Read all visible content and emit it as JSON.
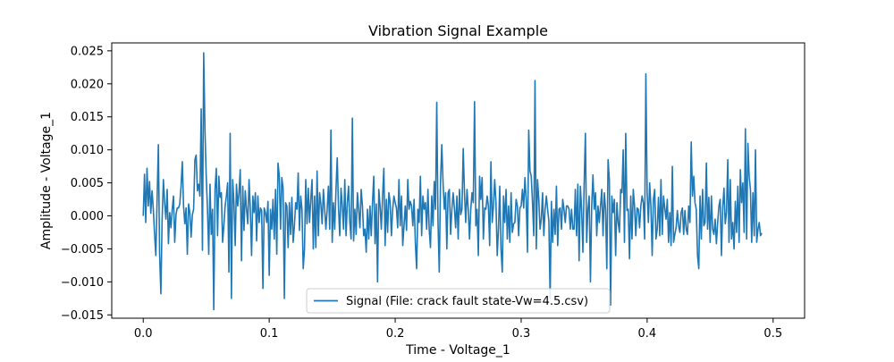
{
  "chart_data": {
    "type": "line",
    "title": "Vibration Signal Example",
    "xlabel": "Time - Voltage_1",
    "ylabel": "Amplitude - Voltage_1",
    "xlim": [
      -0.025,
      0.525
    ],
    "ylim": [
      -0.0155,
      0.0262
    ],
    "xticks": [
      0.0,
      0.1,
      0.2,
      0.3,
      0.4,
      0.5
    ],
    "xtick_labels": [
      "0.0",
      "0.1",
      "0.2",
      "0.3",
      "0.4",
      "0.5"
    ],
    "yticks": [
      -0.015,
      -0.01,
      -0.005,
      0.0,
      0.005,
      0.01,
      0.015,
      0.02,
      0.025
    ],
    "ytick_labels": [
      "−0.015",
      "−0.010",
      "−0.005",
      "0.000",
      "0.005",
      "0.010",
      "0.015",
      "0.020",
      "0.025"
    ],
    "grid": false,
    "legend_position": "lower center",
    "series": [
      {
        "name": "Signal (File: crack fault state-Vw=4.5.csv)",
        "color": "#1f77b4",
        "x_start": 0.0,
        "x_step": 0.001,
        "values": [
          0.0,
          0.0063,
          -0.001,
          0.0072,
          0.0015,
          0.0052,
          0.0004,
          0.0038,
          0.001,
          -0.0028,
          -0.006,
          0.0025,
          0.0108,
          -0.0058,
          -0.0118,
          -0.0005,
          0.0055,
          0.002,
          -0.0005,
          0.004,
          -0.0042,
          0.0005,
          -0.0018,
          0.001,
          0.003,
          -0.004,
          0.0002,
          0.0012,
          0.0012,
          0.0018,
          0.0044,
          0.0082,
          0.0015,
          -0.0012,
          0.0012,
          -0.0058,
          0.0018,
          0.0005,
          -0.0032,
          0.0002,
          0.001,
          0.0085,
          0.0092,
          0.0038,
          0.0048,
          0.003,
          0.0162,
          -0.0052,
          0.0247,
          0.013,
          0.006,
          0.001,
          -0.0058,
          0.0048,
          -0.0028,
          0.001,
          -0.0142,
          0.004,
          0.0072,
          -0.003,
          0.006,
          0.0028,
          0.0035,
          -0.004,
          -0.0015,
          0.0015,
          0.003,
          0.005,
          -0.0085,
          0.0125,
          -0.0125,
          0.0055,
          0.002,
          -0.0045,
          0.0048,
          0.0015,
          0.0035,
          0.007,
          -0.0068,
          0.0045,
          -0.0022,
          0.0038,
          0.001,
          -0.0012,
          0.0055,
          0.001,
          -0.006,
          0.003,
          0.0005,
          0.0035,
          -0.0038,
          0.003,
          -0.001,
          0.0012,
          0.0008,
          -0.011,
          0.0012,
          0.0005,
          -0.001,
          0.0022,
          -0.009,
          0.001,
          -0.002,
          0.0025,
          -0.0035,
          0.004,
          -0.0058,
          0.008,
          0.006,
          -0.002,
          0.0058,
          0.0042,
          -0.0125,
          0.002,
          0.0015,
          -0.0048,
          0.002,
          -0.0028,
          0.0028,
          -0.004,
          -0.0015,
          0.002,
          0.001,
          0.0065,
          -0.0022,
          0.003,
          0.001,
          -0.008,
          -0.005,
          0.0055,
          -0.0012,
          0.0042,
          -0.001,
          0.0025,
          0.0055,
          -0.005,
          0.003,
          -0.0048,
          0.0068,
          -0.003,
          0.0035,
          0.0018,
          -0.0012,
          0.004,
          0.001,
          -0.002,
          0.001,
          0.0045,
          -0.002,
          0.013,
          -0.004,
          0.002,
          -0.002,
          0.004,
          0.0088,
          0.0012,
          -0.003,
          0.0042,
          0.0015,
          -0.002,
          0.0055,
          -0.003,
          0.002,
          0.0045,
          -0.001,
          -0.0035,
          0.0148,
          -0.0038,
          0.001,
          -0.0028,
          0.0035,
          0.001,
          -0.0018,
          0.004,
          0.0015,
          -0.003,
          -0.002,
          -0.0055,
          0.001,
          -0.0035,
          0.0015,
          -0.003,
          0.002,
          0.006,
          -0.0042,
          0.0018,
          -0.01,
          0.004,
          0.0015,
          -0.002,
          0.003,
          0.0072,
          -0.0045,
          0.0025,
          -0.0025,
          0.0035,
          0.002,
          -0.003,
          0.001,
          0.003,
          0.002,
          0.0012,
          -0.0018,
          0.0055,
          -0.0015,
          0.003,
          -0.0045,
          -0.0015,
          0.0015,
          -0.0022,
          0.0055,
          0.001,
          0.0022,
          0.0015,
          -0.0015,
          0.0025,
          -0.004,
          -0.008,
          0.001,
          -0.001,
          0.006,
          -0.003,
          0.003,
          0.001,
          0.002,
          -0.002,
          0.004,
          -0.002,
          -0.0048,
          0.003,
          -0.0015,
          0.0052,
          0.001,
          0.0172,
          -0.001,
          -0.0085,
          0.0052,
          0.0108,
          0.005,
          0.001,
          0.0035,
          -0.005,
          0.0035,
          0.004,
          -0.0028,
          0.001,
          0.0035,
          0.0012,
          -0.0018,
          0.003,
          -0.0035,
          0.004,
          0.0002,
          0.001,
          0.0102,
          0.0035,
          -0.001,
          0.004,
          0.001,
          -0.0035,
          0.001,
          0.0035,
          0.002,
          0.0173,
          -0.0015,
          0.001,
          -0.006,
          0.006,
          0.0025,
          0.0058,
          -0.0035,
          0.0012,
          0.001,
          0.003,
          0.0015,
          -0.0045,
          0.0082,
          -0.001,
          0.0015,
          0.0055,
          0.002,
          -0.006,
          -0.002,
          0.0045,
          -0.005,
          -0.0085,
          0.003,
          -0.001,
          0.004,
          -0.0035,
          0.0015,
          -0.004,
          0.0035,
          -0.0025,
          -0.0012,
          -0.001,
          0.0025,
          0.0015,
          -0.003,
          0.0012,
          0.0015,
          0.004,
          0.0012,
          0.0058,
          0.0025,
          -0.0055,
          0.013,
          0.0068,
          0.006,
          0.002,
          -0.003,
          0.0205,
          -0.005,
          0.0055,
          0.0025,
          -0.002,
          -0.0005,
          0.0035,
          -0.003,
          0.001,
          0.003,
          0.001,
          -0.0008,
          -0.0125,
          0.0022,
          -0.004,
          0.001,
          -0.0028,
          0.0045,
          -0.0045,
          0.001,
          0.0012,
          -0.002,
          0.0025,
          0.001,
          -0.001,
          0.0015,
          0.0015,
          0.001,
          -0.002,
          0.001,
          -0.002,
          -0.002,
          0.004,
          -0.003,
          0.0048,
          -0.0068,
          0.0045,
          0.001,
          -0.0055,
          0.0048,
          0.0125,
          -0.004,
          0.001,
          0.003,
          -0.01,
          0.0015,
          0.0062,
          0.001,
          0.0035,
          -0.003,
          0.0015,
          -0.001,
          0.0015,
          0.004,
          -0.003,
          0.0035,
          0.001,
          -0.008,
          0.0085,
          0.0055,
          -0.0135,
          0.003,
          0.0005,
          0.0025,
          -0.006,
          0.002,
          -0.001,
          -0.0025,
          0.004,
          0.0035,
          0.01,
          -0.004,
          0.0125,
          0.0008,
          0.001,
          -0.0065,
          0.003,
          -0.0035,
          0.004,
          0.0015,
          -0.003,
          0.0012,
          0.001,
          -0.0018,
          0.0015,
          0.003,
          0.002,
          -0.0035,
          0.0215,
          0.0035,
          -0.001,
          0.005,
          0.0015,
          -0.006,
          0.0025,
          0.004,
          -0.0035,
          -0.002,
          0.0028,
          -0.003,
          0.0055,
          -0.0028,
          0.003,
          0.0012,
          -0.0005,
          0.0025,
          -0.004,
          0.0005,
          -0.0045,
          0.0075,
          -0.004,
          -0.0028,
          -0.0018,
          0.0008,
          -0.0015,
          -0.0025,
          0.0005,
          0.0012,
          -0.0028,
          0.0008,
          -0.002,
          -0.0028,
          0.0015,
          -0.001,
          0.0112,
          0.003,
          0.006,
          0.002,
          0.001,
          -0.006,
          -0.008,
          0.003,
          -0.0035,
          0.004,
          -0.0015,
          -0.001,
          0.008,
          -0.002,
          0.0028,
          -0.004,
          0.003,
          -0.002,
          -0.0028,
          -0.0005,
          -0.0042,
          -0.001,
          0.0015,
          0.0025,
          -0.006,
          0.0012,
          0.0042,
          -0.0012,
          0.0005,
          0.0085,
          -0.004,
          0.0055,
          -0.0035,
          -0.001,
          -0.005,
          0.0022,
          -0.0025,
          0.0045,
          -0.004,
          0.007,
          0.002,
          0.005,
          -0.0025,
          0.0132,
          -0.0035,
          0.011,
          0.006,
          0.004,
          -0.004,
          0.0035,
          -0.003,
          0.01,
          -0.004,
          -0.002,
          -0.001,
          -0.003,
          -0.0026
        ]
      }
    ]
  }
}
